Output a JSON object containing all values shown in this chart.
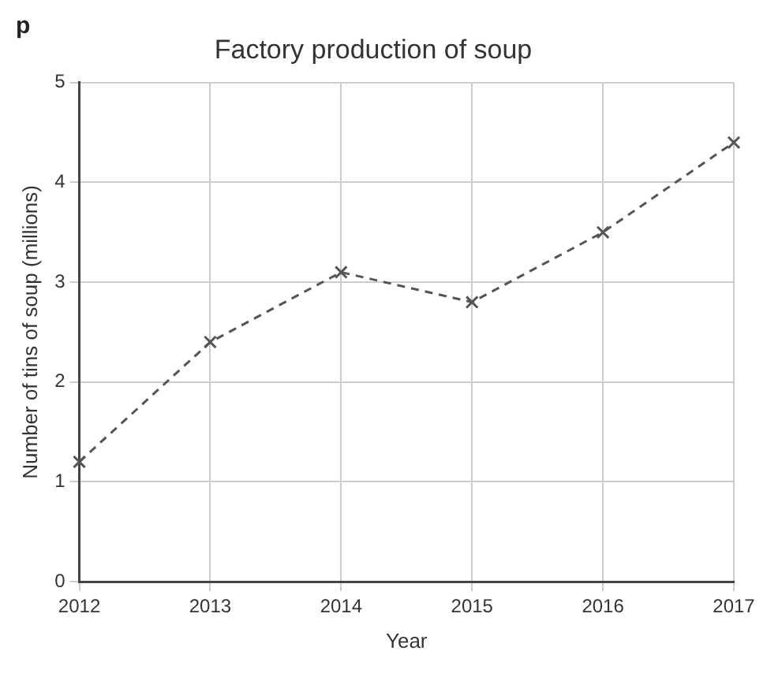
{
  "chart_data": {
    "type": "line",
    "title": "Factory production of soup",
    "xlabel": "Year",
    "ylabel": "Number of tins of soup (millions)",
    "categories": [
      "2012",
      "2013",
      "2014",
      "2015",
      "2016",
      "2017"
    ],
    "series": [
      {
        "color": "#555555",
        "values": [
          1.2,
          2.4,
          3.1,
          2.8,
          3.5,
          4.4
        ]
      }
    ],
    "ylim": [
      0,
      5
    ],
    "yticks": [
      0,
      1,
      2,
      3,
      4,
      5
    ],
    "grid": true,
    "marker": "cross",
    "line_style": "dashed",
    "legend": false,
    "annotations": [
      "p"
    ]
  }
}
